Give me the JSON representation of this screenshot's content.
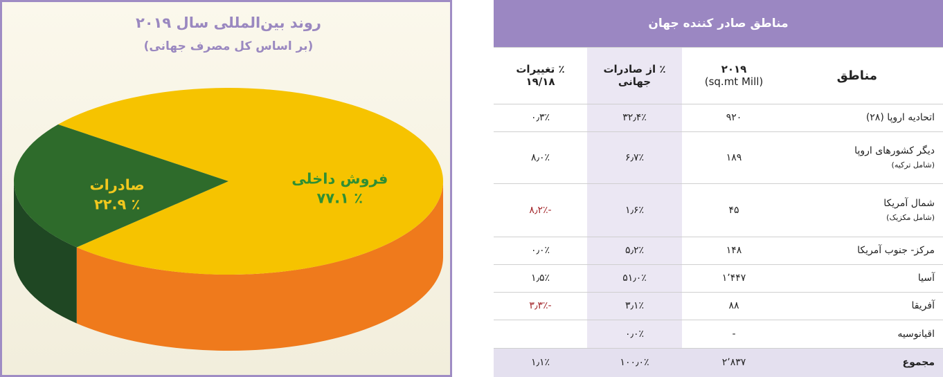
{
  "chart_data": {
    "type": "pie3d",
    "title": "روند بین‌المللی سال ۲۰۱۹",
    "subtitle": "(بر اساس کل مصرف جهانی)",
    "categories": [
      "فروش داخلی",
      "صادرات"
    ],
    "values": [
      77.1,
      22.9
    ],
    "value_labels": [
      "٪ ۷۷.۱",
      "٪ ۲۲.۹"
    ],
    "colors": [
      "#f6c300",
      "#2e6b2b"
    ],
    "side_colors": [
      "#ef7a1c",
      "#1f4723"
    ],
    "label_colors": [
      "#2f8f33",
      "#f2c81e"
    ]
  },
  "table": {
    "title": "مناطق صادر کننده جهان",
    "header": [
      [
        "مناطق"
      ],
      [
        "۲۰۱۹",
        "(sq.mt Mill)"
      ],
      [
        "٪ از صادرات",
        "جهانی"
      ],
      [
        "٪ تغییرات",
        "۱۹/۱۸"
      ]
    ],
    "rows": [
      [
        [
          "اتحادیه اروپا (۲۸)"
        ],
        "۹۲۰",
        "۳۲٫۴٪",
        "۰٫۳٪"
      ],
      [
        [
          "دیگر کشورهای اروپا",
          "(شامل ترکیه)"
        ],
        "۱۸۹",
        "۶٫۷٪",
        "۸٫۰٪"
      ],
      [
        [
          "شمال آمریکا",
          "(شامل مکزیک)"
        ],
        "۴۵",
        "۱٫۶٪",
        "-۸٫۲٪"
      ],
      [
        [
          "مرکز- جنوب آمریکا"
        ],
        "۱۴۸",
        "۵٫۲٪",
        "۰٫۰٪"
      ],
      [
        [
          "آسیا"
        ],
        "۱٬۴۴۷",
        "۵۱٫۰٪",
        "۱٫۵٪"
      ],
      [
        [
          "آفریقا"
        ],
        "۸۸",
        "۳٫۱٪",
        "-۳٫۳٪"
      ],
      [
        [
          "اقیانوسیه"
        ],
        "-",
        "۰٫۰٪",
        null
      ]
    ],
    "total": [
      [
        "مجموع"
      ],
      "۲٬۸۳۷",
      "۱۰۰٫۰٪",
      "۱٫۱٪"
    ],
    "negative_color": "#a3262a"
  }
}
